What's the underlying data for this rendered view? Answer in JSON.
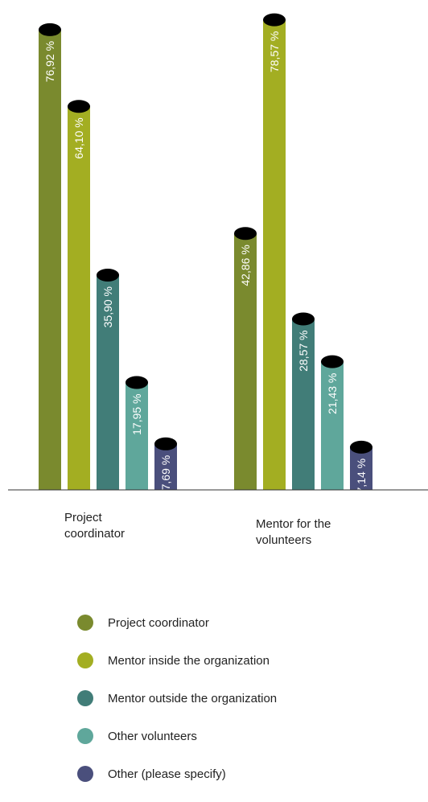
{
  "chart_data": {
    "type": "bar",
    "categories": [
      "Project\ncoordinator",
      "Mentor for the\nvolunteers"
    ],
    "series": [
      {
        "name": "Project coordinator",
        "color": "#7a8a2e",
        "values": [
          76.92,
          42.86
        ],
        "labels": [
          "76,92 %",
          "42,86 %"
        ]
      },
      {
        "name": "Mentor inside the organization",
        "color": "#a3ae22",
        "values": [
          64.1,
          78.57
        ],
        "labels": [
          "64,10 %",
          "78,57 %"
        ]
      },
      {
        "name": "Mentor outside the organization",
        "color": "#417d78",
        "values": [
          35.9,
          28.57
        ],
        "labels": [
          "35,90 %",
          "28,57 %"
        ]
      },
      {
        "name": "Other volunteers",
        "color": "#5fa79b",
        "values": [
          17.95,
          21.43
        ],
        "labels": [
          "17,95 %",
          "21,43 %"
        ]
      },
      {
        "name": "Other (please specify)",
        "color": "#4a4f7c",
        "values": [
          7.69,
          7.14
        ],
        "labels": [
          "7,69 %",
          "7,14 %"
        ]
      }
    ],
    "ylim": [
      0,
      80
    ],
    "grid": false,
    "legend_position": "bottom"
  }
}
